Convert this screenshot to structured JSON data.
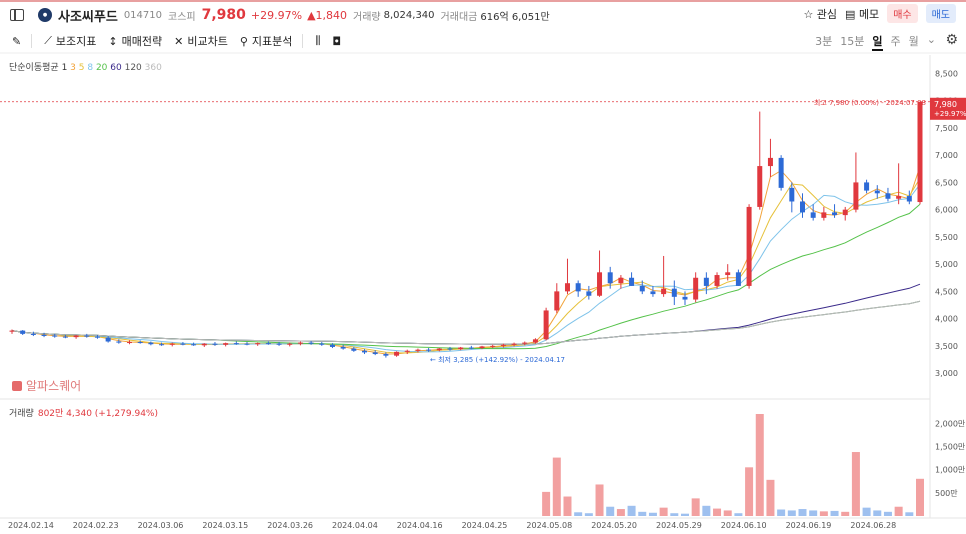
{
  "header": {
    "name": "사조씨푸드",
    "code": "014710",
    "market": "코스피",
    "price": "7,980",
    "change_pct": "+29.97%",
    "change_amt": "▲1,840",
    "volume_label": "거래량",
    "volume": "8,024,340",
    "amount_label": "거래대금",
    "amount": "616억 6,051만",
    "watch": "관심",
    "memo": "메모",
    "buy": "매수",
    "sell": "매도"
  },
  "toolbar": {
    "tools": [
      "보조지표",
      "매매전략",
      "비교차트",
      "지표분석"
    ],
    "periods": [
      "3분",
      "15분",
      "일",
      "주",
      "월"
    ],
    "active_period": "일"
  },
  "legend": {
    "label": "단순이동평균",
    "periods": [
      {
        "text": "1",
        "color": "#333"
      },
      {
        "text": "3",
        "color": "#f2a33a"
      },
      {
        "text": "5",
        "color": "#e6c13a"
      },
      {
        "text": "8",
        "color": "#7ec3ea"
      },
      {
        "text": "20",
        "color": "#55c24a"
      },
      {
        "text": "60",
        "color": "#3a2a8a"
      },
      {
        "text": "120",
        "color": "#555"
      },
      {
        "text": "360",
        "color": "#bbb"
      }
    ]
  },
  "watermark": "알파스퀘어",
  "volume_panel": {
    "label": "거래량",
    "value": "802만 4,340 (+1,279.94%)"
  },
  "chart_data": {
    "type": "candlestick",
    "y_ticks": [
      "8,500",
      "8,000",
      "7,500",
      "7,000",
      "6,500",
      "6,000",
      "5,500",
      "5,000",
      "4,500",
      "4,000",
      "3,500",
      "3,000"
    ],
    "ylim": [
      2800,
      8600
    ],
    "x_ticks": [
      "2024.02.14",
      "2024.02.23",
      "2024.03.06",
      "2024.03.15",
      "2024.03.26",
      "2024.04.04",
      "2024.04.16",
      "2024.04.25",
      "2024.05.08",
      "2024.05.20",
      "2024.05.29",
      "2024.06.10",
      "2024.06.19",
      "2024.06.28"
    ],
    "high_annotation": "최고 7,980 (0.00%) - 2024.07.08",
    "low_annotation": "최저 3,285 (+142.92%) - 2024.04.17",
    "last_price": "7,980",
    "last_change": "+29.97%",
    "volume_ticks": [
      "2,000만",
      "1,500만",
      "1,000만",
      "500만"
    ],
    "volume_max": 22000000,
    "candles": [
      [
        3760,
        3800,
        3720,
        3780
      ],
      [
        3780,
        3790,
        3700,
        3720
      ],
      [
        3720,
        3760,
        3680,
        3700
      ],
      [
        3700,
        3740,
        3660,
        3690
      ],
      [
        3690,
        3720,
        3650,
        3670
      ],
      [
        3670,
        3700,
        3640,
        3660
      ],
      [
        3660,
        3700,
        3630,
        3690
      ],
      [
        3690,
        3720,
        3650,
        3670
      ],
      [
        3670,
        3700,
        3630,
        3650
      ],
      [
        3650,
        3680,
        3560,
        3580
      ],
      [
        3580,
        3620,
        3540,
        3560
      ],
      [
        3560,
        3600,
        3530,
        3570
      ],
      [
        3570,
        3600,
        3540,
        3560
      ],
      [
        3560,
        3580,
        3510,
        3530
      ],
      [
        3530,
        3560,
        3500,
        3520
      ],
      [
        3520,
        3560,
        3490,
        3540
      ],
      [
        3540,
        3570,
        3510,
        3530
      ],
      [
        3530,
        3560,
        3500,
        3510
      ],
      [
        3510,
        3550,
        3480,
        3540
      ],
      [
        3540,
        3570,
        3500,
        3520
      ],
      [
        3520,
        3560,
        3490,
        3550
      ],
      [
        3550,
        3580,
        3520,
        3540
      ],
      [
        3540,
        3570,
        3510,
        3530
      ],
      [
        3530,
        3560,
        3500,
        3550
      ],
      [
        3550,
        3580,
        3520,
        3540
      ],
      [
        3540,
        3570,
        3500,
        3520
      ],
      [
        3520,
        3560,
        3490,
        3540
      ],
      [
        3540,
        3580,
        3510,
        3560
      ],
      [
        3560,
        3590,
        3520,
        3540
      ],
      [
        3540,
        3570,
        3500,
        3520
      ],
      [
        3520,
        3550,
        3460,
        3480
      ],
      [
        3480,
        3520,
        3430,
        3450
      ],
      [
        3450,
        3480,
        3390,
        3410
      ],
      [
        3410,
        3440,
        3350,
        3380
      ],
      [
        3380,
        3420,
        3330,
        3350
      ],
      [
        3350,
        3380,
        3285,
        3320
      ],
      [
        3320,
        3400,
        3300,
        3390
      ],
      [
        3390,
        3430,
        3350,
        3410
      ],
      [
        3410,
        3450,
        3380,
        3430
      ],
      [
        3430,
        3460,
        3390,
        3420
      ],
      [
        3420,
        3460,
        3400,
        3450
      ],
      [
        3450,
        3480,
        3410,
        3440
      ],
      [
        3440,
        3480,
        3420,
        3470
      ],
      [
        3470,
        3500,
        3440,
        3460
      ],
      [
        3460,
        3500,
        3440,
        3490
      ],
      [
        3490,
        3520,
        3460,
        3500
      ],
      [
        3500,
        3540,
        3470,
        3520
      ],
      [
        3520,
        3560,
        3490,
        3540
      ],
      [
        3540,
        3580,
        3510,
        3560
      ],
      [
        3560,
        3640,
        3540,
        3620
      ],
      [
        3620,
        4200,
        3600,
        4150
      ],
      [
        4150,
        4650,
        4100,
        4500
      ],
      [
        4500,
        5100,
        4450,
        4650
      ],
      [
        4650,
        4700,
        4400,
        4500
      ],
      [
        4500,
        4600,
        4350,
        4420
      ],
      [
        4420,
        5250,
        4400,
        4850
      ],
      [
        4850,
        4950,
        4550,
        4650
      ],
      [
        4650,
        4800,
        4550,
        4750
      ],
      [
        4750,
        4850,
        4600,
        4600
      ],
      [
        4600,
        4700,
        4450,
        4500
      ],
      [
        4500,
        4600,
        4400,
        4450
      ],
      [
        4450,
        5150,
        4400,
        4550
      ],
      [
        4550,
        4700,
        4250,
        4400
      ],
      [
        4400,
        4500,
        4250,
        4350
      ],
      [
        4350,
        4850,
        4300,
        4750
      ],
      [
        4750,
        4850,
        4450,
        4600
      ],
      [
        4600,
        4850,
        4550,
        4800
      ],
      [
        4800,
        5000,
        4700,
        4850
      ],
      [
        4850,
        4900,
        4600,
        4600
      ],
      [
        4600,
        6100,
        4550,
        6050
      ],
      [
        6050,
        7800,
        6000,
        6800
      ],
      [
        6800,
        7300,
        6600,
        6950
      ],
      [
        6950,
        7000,
        6350,
        6400
      ],
      [
        6400,
        6500,
        5950,
        6150
      ],
      [
        6150,
        6300,
        5850,
        5950
      ],
      [
        5950,
        6100,
        5800,
        5850
      ],
      [
        5850,
        6050,
        5800,
        5950
      ],
      [
        5950,
        6100,
        5850,
        5900
      ],
      [
        5900,
        6050,
        5800,
        6000
      ],
      [
        6000,
        7050,
        5950,
        6500
      ],
      [
        6500,
        6550,
        6300,
        6350
      ],
      [
        6350,
        6450,
        6200,
        6300
      ],
      [
        6300,
        6400,
        6150,
        6200
      ],
      [
        6200,
        6850,
        6100,
        6250
      ],
      [
        6250,
        6350,
        6100,
        6150
      ],
      [
        6140,
        7980,
        6100,
        7980
      ]
    ],
    "volumes": [
      0,
      0,
      0,
      0,
      0,
      0,
      0,
      0,
      0,
      0,
      0,
      0,
      0,
      0,
      0,
      0,
      0,
      0,
      0,
      0,
      0,
      0,
      0,
      0,
      0,
      0,
      0,
      0,
      0,
      0,
      0,
      0,
      0,
      0,
      0,
      0,
      0,
      0,
      0,
      0,
      0,
      0,
      0,
      0,
      0,
      0,
      0,
      0,
      0,
      0,
      5200000,
      12600000,
      4200000,
      800000,
      600000,
      6800000,
      2000000,
      1500000,
      2200000,
      900000,
      700000,
      1800000,
      600000,
      500000,
      3800000,
      2200000,
      1600000,
      1200000,
      600000,
      10500000,
      22000000,
      7800000,
      1400000,
      1200000,
      1500000,
      1200000,
      1000000,
      1100000,
      900000,
      13800000,
      1800000,
      1200000,
      900000,
      2000000,
      800000,
      8024340
    ]
  }
}
